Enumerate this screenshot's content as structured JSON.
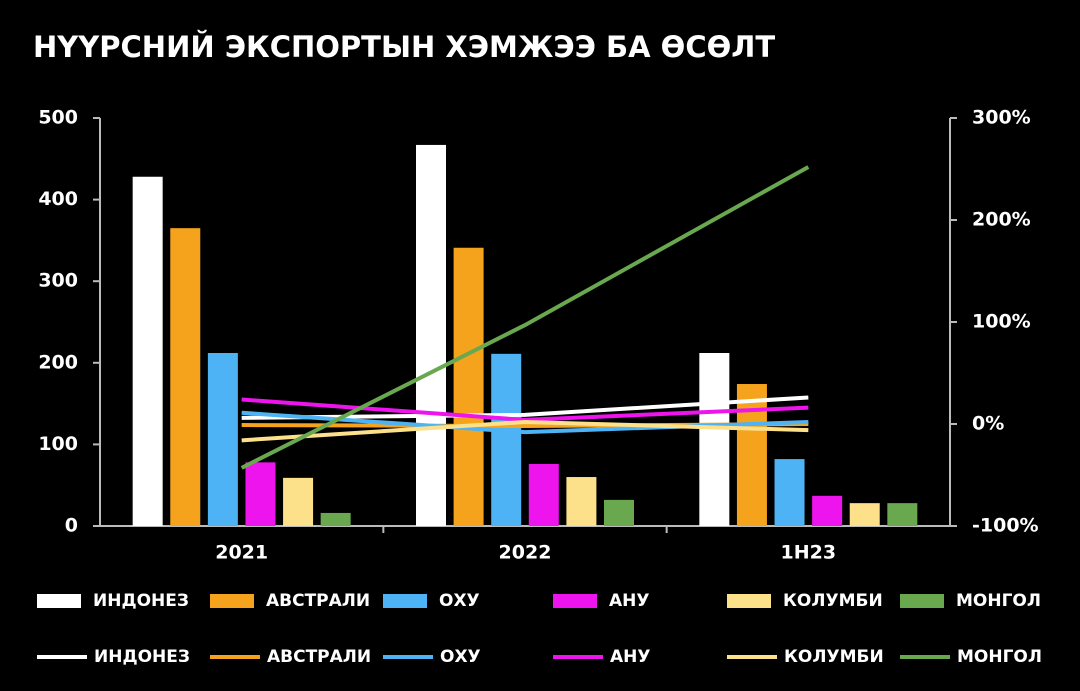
{
  "chart_data": {
    "type": "bar",
    "title": "НҮҮРСНИЙ ЭКСПОРТЫН ХЭМЖЭЭ БА ӨСӨЛТ",
    "categories": [
      "2021",
      "2022",
      "1H23"
    ],
    "ylim": [
      0,
      500
    ],
    "yticks": [
      0,
      100,
      200,
      300,
      400,
      500
    ],
    "y2lim": [
      -100,
      300
    ],
    "y2ticks": [
      {
        "value": -100,
        "label": "-100%"
      },
      {
        "value": 0,
        "label": "0%"
      },
      {
        "value": 100,
        "label": "100%"
      },
      {
        "value": 200,
        "label": "200%"
      },
      {
        "value": 300,
        "label": "300%"
      }
    ],
    "grid": false,
    "series": [
      {
        "name": "ИНДОНЕЗ",
        "type": "bar",
        "color": "#ffffff",
        "values": [
          428,
          467,
          212
        ]
      },
      {
        "name": "АВСТРАЛИ",
        "type": "bar",
        "color": "#f5a21c",
        "values": [
          365,
          341,
          174
        ]
      },
      {
        "name": "ОХУ",
        "type": "bar",
        "color": "#4db3f5",
        "values": [
          212,
          211,
          82
        ]
      },
      {
        "name": "АНУ",
        "type": "bar",
        "color": "#ee14ee",
        "values": [
          78,
          76,
          37
        ]
      },
      {
        "name": "КОЛУМБИ",
        "type": "bar",
        "color": "#fde08a",
        "values": [
          59,
          60,
          28
        ]
      },
      {
        "name": "МОНГОЛ",
        "type": "bar",
        "color": "#6aa84f",
        "values": [
          16,
          32,
          28
        ]
      },
      {
        "name": "ИНДОНЕЗ",
        "type": "line",
        "axis": "y2",
        "color": "#ffffff",
        "values": [
          6,
          9,
          26
        ]
      },
      {
        "name": "АВСТРАЛИ",
        "type": "line",
        "axis": "y2",
        "color": "#f5a21c",
        "values": [
          -1,
          -2,
          0
        ]
      },
      {
        "name": "ОХУ",
        "type": "line",
        "axis": "y2",
        "color": "#4db3f5",
        "values": [
          11,
          -8,
          2
        ]
      },
      {
        "name": "АНУ",
        "type": "line",
        "axis": "y2",
        "color": "#ee14ee",
        "values": [
          24,
          4,
          16
        ]
      },
      {
        "name": "КОЛУМБИ",
        "type": "line",
        "axis": "y2",
        "color": "#fde08a",
        "values": [
          -16,
          2,
          -6
        ]
      },
      {
        "name": "МОНГОЛ",
        "type": "line",
        "axis": "y2",
        "color": "#6aa84f",
        "values": [
          -43,
          97,
          252
        ]
      }
    ]
  }
}
